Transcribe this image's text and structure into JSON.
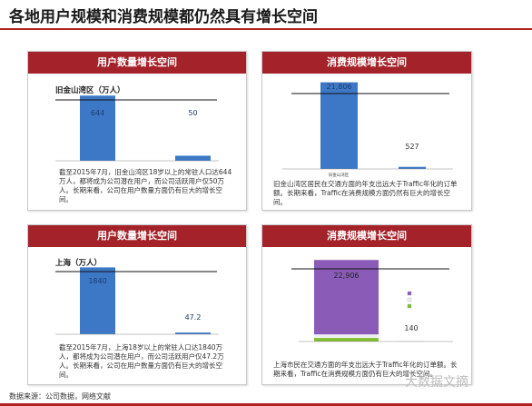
{
  "page": {
    "title": "各地用户规模和消费规模都仍然具有增长空间",
    "source": "数据来源：公司数据，网络文献",
    "watermark": "大数据文摘"
  },
  "colors": {
    "accent": "#a4232a",
    "bar": "#3d78c6",
    "purple": "#8a5cb8",
    "green": "#7fbf2e"
  },
  "panels": [
    {
      "header": "用户数量增长空间",
      "note": "截至2015年7月，旧金山湾区18岁以上的常驻人口达644万人，都将成为公司潜在用户，而公司活跃用户仅50万人。长期来看，公司在用户数量方面仍有巨大的增长空间。"
    },
    {
      "header": "消费规模增长空间",
      "note": "旧金山湾区居民在交通方面的年支出远大于Traffic年化的订单额。长期来看，Traffic在消费规模方面仍然有巨大的增长空间。"
    },
    {
      "header": "用户数量增长空间",
      "note": "截至2015年7月，上海18岁以上的常驻人口达1840万人，都将成为公司潜在用户，而公司活跃用户仅47.2万人。长期来看，公司在用户数量方面仍有巨大的增长空间。"
    },
    {
      "header": "消费规模增长空间",
      "note": "上海市民在交通方面的年支出远大于Traffic年化的订单额。长期来看，Traffic在消费规模方面仍有巨大的增长空间。"
    }
  ],
  "chart_data": [
    {
      "type": "bar",
      "title": "旧金山湾区（万人）",
      "categories": [
        "",
        ""
      ],
      "values": [
        644,
        50
      ],
      "value_labels": [
        "644",
        "50"
      ],
      "ylim": [
        0,
        700
      ]
    },
    {
      "type": "bar",
      "title": "",
      "categories": [
        "",
        ""
      ],
      "values": [
        21806,
        527
      ],
      "value_labels": [
        "21,806",
        "527"
      ],
      "ylim": [
        0,
        24000
      ],
      "x_label_bar1": "旧金山湾区"
    },
    {
      "type": "bar",
      "title": "上海（万人）",
      "categories": [
        "",
        ""
      ],
      "values": [
        1840,
        47.2
      ],
      "value_labels": [
        "1840",
        "47.2"
      ],
      "ylim": [
        0,
        2000
      ]
    },
    {
      "type": "bar",
      "title": "",
      "stacked": true,
      "categories": [
        "",
        ""
      ],
      "series": [
        {
          "name": "",
          "values": [
            1000,
            0
          ]
        },
        {
          "name": "",
          "values": [
            1000,
            0
          ]
        },
        {
          "name": "",
          "values": [
            20906,
            140
          ]
        }
      ],
      "value_labels": [
        "22,906",
        "140"
      ],
      "ylim": [
        0,
        25000
      ]
    }
  ]
}
